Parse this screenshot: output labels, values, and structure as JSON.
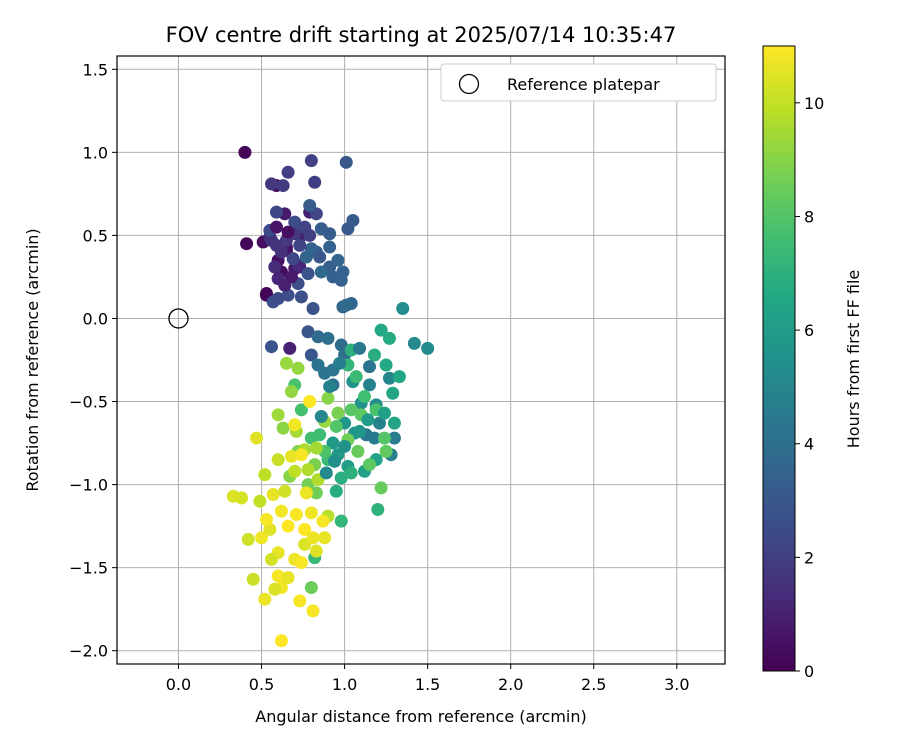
{
  "chart_data": {
    "type": "scatter",
    "title": "FOV centre drift starting at 2025/07/14 10:35:47",
    "xlabel": "Angular distance from reference (arcmin)",
    "ylabel": "Rotation from reference (arcmin)",
    "xlim": [
      -0.37,
      3.29
    ],
    "ylim": [
      -2.08,
      1.58
    ],
    "xticks": [
      "0.0",
      "0.5",
      "1.0",
      "1.5",
      "2.0",
      "2.5",
      "3.0"
    ],
    "yticks": [
      "1.5",
      "1.0",
      "0.5",
      "0.0",
      "−0.5",
      "−1.0",
      "−1.5",
      "−2.0"
    ],
    "grid": true,
    "legend": {
      "placement": "top-right",
      "entries": [
        {
          "label": "Reference platepar",
          "marker": "open-circle"
        }
      ]
    },
    "reference_point": {
      "x": 0.0,
      "y": 0.0
    },
    "colorbar": {
      "label": "Hours from first FF file",
      "range": [
        0,
        11
      ],
      "ticks": [
        "0",
        "2",
        "4",
        "6",
        "8",
        "10"
      ],
      "colormap": "viridis"
    },
    "series": [
      {
        "color_by": "hours",
        "points": [
          [
            0.4,
            1.0,
            0.1
          ],
          [
            0.41,
            0.45,
            0.2
          ],
          [
            0.51,
            0.46,
            0.3
          ],
          [
            0.53,
            0.15,
            0.2
          ],
          [
            0.53,
            0.14,
            0.1
          ],
          [
            0.59,
            0.8,
            0.3
          ],
          [
            0.65,
            0.41,
            0.4
          ],
          [
            0.6,
            0.35,
            0.5
          ],
          [
            0.62,
            0.28,
            0.4
          ],
          [
            0.65,
            0.43,
            0.6
          ],
          [
            0.7,
            0.3,
            0.7
          ],
          [
            0.64,
            0.63,
            0.8
          ],
          [
            0.79,
            0.64,
            0.9
          ],
          [
            0.74,
            0.5,
            0.9
          ],
          [
            0.73,
            0.31,
            1.0
          ],
          [
            0.72,
            0.32,
            1.2
          ],
          [
            0.67,
            -0.18,
            1.0
          ],
          [
            0.55,
            0.49,
            1.3
          ],
          [
            0.56,
            0.47,
            1.5
          ],
          [
            0.59,
            0.44,
            1.7
          ],
          [
            0.65,
            0.47,
            1.8
          ],
          [
            0.63,
            0.8,
            1.9
          ],
          [
            0.56,
            0.81,
            1.8
          ],
          [
            0.66,
            0.88,
            2.0
          ],
          [
            0.8,
            0.95,
            2.1
          ],
          [
            0.82,
            0.82,
            2.0
          ],
          [
            0.76,
            0.55,
            2.2
          ],
          [
            0.83,
            0.63,
            2.3
          ],
          [
            0.59,
            0.64,
            2.4
          ],
          [
            0.7,
            0.58,
            2.5
          ],
          [
            0.55,
            0.53,
            2.5
          ],
          [
            0.6,
            0.12,
            2.5
          ],
          [
            0.57,
            0.1,
            2.6
          ],
          [
            0.66,
            0.14,
            2.6
          ],
          [
            0.74,
            0.13,
            2.7
          ],
          [
            0.81,
            0.06,
            2.8
          ],
          [
            0.56,
            -0.17,
            2.8
          ],
          [
            0.78,
            -0.08,
            2.9
          ],
          [
            0.8,
            -0.22,
            3.0
          ],
          [
            1.01,
            0.94,
            3.0
          ],
          [
            1.05,
            0.59,
            3.1
          ],
          [
            1.02,
            0.54,
            3.1
          ],
          [
            0.91,
            0.51,
            3.2
          ],
          [
            0.86,
            0.54,
            3.2
          ],
          [
            0.79,
            0.68,
            3.2
          ],
          [
            0.93,
            0.25,
            3.3
          ],
          [
            0.91,
            0.31,
            3.3
          ],
          [
            0.99,
            0.28,
            3.4
          ],
          [
            0.98,
            0.23,
            3.4
          ],
          [
            1.04,
            0.09,
            3.5
          ],
          [
            0.99,
            0.07,
            3.6
          ],
          [
            0.83,
            0.4,
            3.4
          ],
          [
            0.8,
            0.42,
            3.5
          ],
          [
            0.77,
            0.37,
            3.6
          ],
          [
            0.86,
            0.28,
            3.7
          ],
          [
            1.01,
            0.08,
            3.8
          ],
          [
            0.98,
            -0.16,
            3.9
          ],
          [
            1.0,
            -0.22,
            4.0
          ],
          [
            0.93,
            -0.4,
            4.1
          ],
          [
            0.88,
            -0.33,
            4.2
          ],
          [
            0.84,
            -0.28,
            4.2
          ],
          [
            0.93,
            -0.31,
            4.3
          ],
          [
            1.13,
            -0.7,
            4.4
          ],
          [
            1.18,
            -0.72,
            4.5
          ],
          [
            1.3,
            -0.72,
            4.6
          ],
          [
            1.28,
            -0.82,
            4.7
          ],
          [
            1.21,
            -0.63,
            4.8
          ],
          [
            1.15,
            -0.4,
            4.9
          ],
          [
            1.27,
            -0.36,
            5.0
          ],
          [
            1.42,
            -0.15,
            5.1
          ],
          [
            1.5,
            -0.18,
            5.2
          ],
          [
            1.35,
            0.06,
            5.3
          ],
          [
            1.19,
            -0.52,
            5.4
          ],
          [
            1.05,
            -0.38,
            5.5
          ],
          [
            1.1,
            -0.51,
            5.6
          ],
          [
            1.06,
            -0.69,
            5.7
          ],
          [
            1.0,
            -0.63,
            5.8
          ],
          [
            0.93,
            -0.75,
            5.9
          ],
          [
            0.96,
            -0.82,
            6.0
          ],
          [
            1.02,
            -0.89,
            6.1
          ],
          [
            1.12,
            -0.92,
            6.2
          ],
          [
            1.19,
            -0.85,
            6.3
          ],
          [
            1.3,
            -0.63,
            6.4
          ],
          [
            1.33,
            -0.35,
            6.5
          ],
          [
            1.22,
            -0.07,
            6.6
          ],
          [
            1.27,
            -0.12,
            6.7
          ],
          [
            0.95,
            -1.04,
            6.8
          ],
          [
            0.98,
            -0.96,
            6.9
          ],
          [
            1.04,
            -0.93,
            7.0
          ],
          [
            1.2,
            -1.15,
            7.1
          ],
          [
            0.98,
            -1.22,
            7.2
          ],
          [
            0.82,
            -1.44,
            7.3
          ],
          [
            0.9,
            -0.85,
            7.4
          ],
          [
            0.85,
            -0.7,
            7.5
          ],
          [
            0.8,
            -0.72,
            7.6
          ],
          [
            0.74,
            -0.55,
            7.7
          ],
          [
            0.7,
            -0.4,
            7.8
          ],
          [
            0.88,
            -0.8,
            7.9
          ],
          [
            0.95,
            -0.65,
            8.0
          ],
          [
            1.04,
            -0.55,
            8.1
          ],
          [
            1.1,
            -0.58,
            8.2
          ],
          [
            1.25,
            -0.8,
            8.3
          ],
          [
            1.22,
            -1.02,
            8.4
          ],
          [
            0.8,
            -1.62,
            8.5
          ],
          [
            0.83,
            -1.05,
            8.6
          ],
          [
            0.78,
            -1.0,
            8.7
          ],
          [
            0.82,
            -0.88,
            8.8
          ],
          [
            0.72,
            -0.8,
            8.9
          ],
          [
            0.67,
            -0.95,
            9.0
          ],
          [
            0.63,
            -0.66,
            9.1
          ],
          [
            0.68,
            -0.44,
            9.2
          ],
          [
            0.72,
            -0.3,
            9.2
          ],
          [
            0.65,
            -0.27,
            9.3
          ],
          [
            0.6,
            -0.58,
            9.4
          ],
          [
            0.71,
            -0.68,
            9.5
          ],
          [
            0.76,
            -0.79,
            9.6
          ],
          [
            0.84,
            -0.97,
            9.7
          ],
          [
            0.9,
            -1.19,
            9.8
          ],
          [
            0.52,
            -0.94,
            9.9
          ],
          [
            0.49,
            -1.1,
            10.0
          ],
          [
            0.45,
            -1.57,
            10.1
          ],
          [
            0.42,
            -1.33,
            10.2
          ],
          [
            0.38,
            -1.08,
            10.3
          ],
          [
            0.33,
            -1.07,
            10.4
          ],
          [
            0.47,
            -0.72,
            10.5
          ],
          [
            0.55,
            -1.27,
            10.5
          ],
          [
            0.6,
            -1.41,
            10.6
          ],
          [
            0.52,
            -1.69,
            10.7
          ],
          [
            0.62,
            -1.62,
            10.8
          ],
          [
            0.73,
            -1.7,
            10.9
          ],
          [
            0.62,
            -1.94,
            11.0
          ],
          [
            0.81,
            -1.76,
            10.9
          ],
          [
            0.79,
            -0.5,
            11.0
          ],
          [
            0.7,
            -0.64,
            10.8
          ],
          [
            0.68,
            -0.83,
            10.6
          ],
          [
            0.74,
            -0.82,
            10.9
          ],
          [
            0.77,
            -1.05,
            10.7
          ],
          [
            0.8,
            -1.17,
            10.8
          ],
          [
            0.87,
            -1.22,
            10.9
          ],
          [
            0.88,
            -1.32,
            10.6
          ],
          [
            0.83,
            -1.4,
            10.5
          ],
          [
            0.76,
            -1.36,
            10.4
          ],
          [
            0.7,
            -1.45,
            10.7
          ],
          [
            0.6,
            -1.55,
            10.9
          ],
          [
            0.56,
            -1.45,
            10.3
          ],
          [
            0.5,
            -1.32,
            10.8
          ],
          [
            0.53,
            -1.21,
            10.9
          ],
          [
            0.57,
            -1.06,
            10.6
          ],
          [
            0.62,
            -1.16,
            10.8
          ],
          [
            0.66,
            -1.25,
            11.0
          ],
          [
            0.71,
            -1.18,
            10.9
          ],
          [
            0.76,
            -1.27,
            11.0
          ],
          [
            0.81,
            -1.32,
            10.7
          ],
          [
            0.74,
            -1.47,
            10.9
          ],
          [
            0.66,
            -1.56,
            10.6
          ],
          [
            0.58,
            -1.63,
            10.4
          ],
          [
            0.64,
            -1.04,
            10.2
          ],
          [
            0.6,
            -0.85,
            10.1
          ],
          [
            0.7,
            -0.92,
            9.9
          ],
          [
            0.78,
            -0.91,
            9.7
          ],
          [
            0.83,
            -0.78,
            9.5
          ],
          [
            0.88,
            -0.62,
            9.3
          ],
          [
            0.9,
            -0.48,
            9.0
          ],
          [
            0.96,
            -0.57,
            8.8
          ],
          [
            1.02,
            -0.73,
            8.6
          ],
          [
            1.08,
            -0.8,
            8.4
          ],
          [
            1.15,
            -0.88,
            8.2
          ],
          [
            1.24,
            -0.72,
            8.0
          ],
          [
            1.19,
            -0.55,
            7.8
          ],
          [
            1.12,
            -0.47,
            7.6
          ],
          [
            1.07,
            -0.35,
            7.4
          ],
          [
            1.02,
            -0.28,
            7.2
          ],
          [
            1.04,
            -0.19,
            7.0
          ],
          [
            1.18,
            -0.22,
            6.8
          ],
          [
            1.25,
            -0.28,
            6.6
          ],
          [
            1.29,
            -0.45,
            6.4
          ],
          [
            1.24,
            -0.57,
            6.2
          ],
          [
            1.14,
            -0.61,
            6.0
          ],
          [
            1.09,
            -0.68,
            5.8
          ],
          [
            1.0,
            -0.77,
            5.6
          ],
          [
            0.94,
            -0.86,
            5.4
          ],
          [
            0.89,
            -0.93,
            5.2
          ],
          [
            0.86,
            -0.59,
            5.0
          ],
          [
            0.91,
            -0.41,
            4.8
          ],
          [
            0.97,
            -0.27,
            4.6
          ],
          [
            1.09,
            -0.18,
            4.4
          ],
          [
            1.15,
            -0.29,
            4.2
          ],
          [
            0.9,
            -0.12,
            4.0
          ],
          [
            0.84,
            -0.11,
            3.8
          ],
          [
            0.96,
            0.35,
            3.6
          ],
          [
            0.91,
            0.43,
            3.4
          ],
          [
            0.85,
            0.37,
            3.0
          ],
          [
            0.78,
            0.27,
            2.8
          ],
          [
            0.72,
            0.21,
            2.6
          ],
          [
            0.69,
            0.36,
            2.4
          ],
          [
            0.73,
            0.44,
            2.2
          ],
          [
            0.79,
            0.5,
            2.0
          ],
          [
            0.7,
            0.51,
            1.8
          ],
          [
            0.62,
            0.4,
            1.6
          ],
          [
            0.58,
            0.31,
            1.4
          ],
          [
            0.6,
            0.24,
            1.2
          ],
          [
            0.64,
            0.2,
            1.0
          ],
          [
            0.68,
            0.25,
            0.8
          ],
          [
            0.59,
            0.55,
            0.6
          ],
          [
            0.66,
            0.52,
            0.4
          ]
        ]
      }
    ]
  }
}
